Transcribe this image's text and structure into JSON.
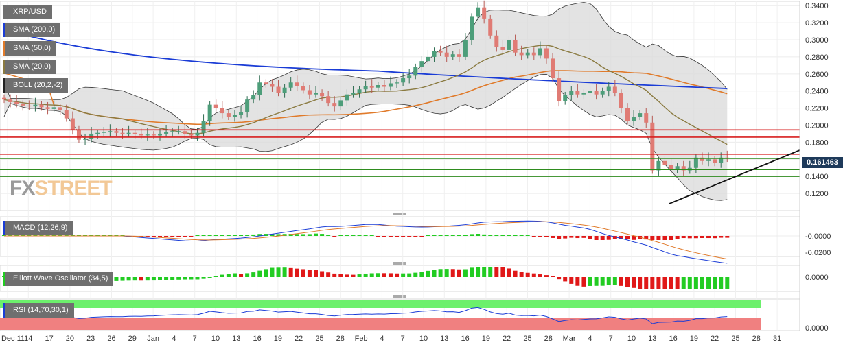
{
  "chart_data": {
    "type": "candlestick",
    "symbol": "XRP/USD",
    "indicators": [
      {
        "label": "SMA (200,0)",
        "color": "#1a3cd6"
      },
      {
        "label": "SMA (50,0)",
        "color": "#e07a2a"
      },
      {
        "label": "SMA (20,0)",
        "color": "#8a7a40"
      },
      {
        "label": "BOLL (20,2,-2)",
        "color": "#222222"
      }
    ],
    "current_price": "0.161463",
    "price_ylim": [
      0.1,
      0.345
    ],
    "price_ticks": [
      "0.3400",
      "0.3200",
      "0.3000",
      "0.2800",
      "0.2600",
      "0.2400",
      "0.2200",
      "0.2000",
      "0.1800",
      "0.1600",
      "0.1400",
      "0.1200"
    ],
    "x_labels": [
      "Dec 11",
      "14",
      "17",
      "20",
      "23",
      "26",
      "29",
      "Jan",
      "4",
      "7",
      "10",
      "13",
      "16",
      "19",
      "22",
      "25",
      "28",
      "Feb",
      "4",
      "7",
      "10",
      "13",
      "16",
      "19",
      "22",
      "25",
      "28",
      "Mar",
      "4",
      "7",
      "10",
      "13",
      "16",
      "19",
      "22",
      "25",
      "28",
      "31"
    ],
    "horizontal_levels": {
      "red": [
        0.1945,
        0.186,
        0.166
      ],
      "green": [
        0.161,
        0.148,
        0.14
      ]
    },
    "close": [
      0.23,
      0.227,
      0.225,
      0.223,
      0.222,
      0.224,
      0.221,
      0.219,
      0.221,
      0.218,
      0.208,
      0.195,
      0.183,
      0.184,
      0.19,
      0.191,
      0.192,
      0.193,
      0.191,
      0.19,
      0.191,
      0.19,
      0.188,
      0.189,
      0.188,
      0.19,
      0.192,
      0.193,
      0.193,
      0.19,
      0.188,
      0.191,
      0.205,
      0.224,
      0.22,
      0.214,
      0.21,
      0.212,
      0.215,
      0.23,
      0.235,
      0.25,
      0.248,
      0.245,
      0.238,
      0.244,
      0.25,
      0.246,
      0.241,
      0.236,
      0.238,
      0.234,
      0.226,
      0.222,
      0.229,
      0.236,
      0.238,
      0.242,
      0.246,
      0.244,
      0.247,
      0.245,
      0.249,
      0.25,
      0.255,
      0.258,
      0.268,
      0.275,
      0.28,
      0.287,
      0.285,
      0.28,
      0.283,
      0.28,
      0.3,
      0.327,
      0.338,
      0.325,
      0.305,
      0.292,
      0.288,
      0.3,
      0.285,
      0.282,
      0.285,
      0.282,
      0.29,
      0.278,
      0.255,
      0.228,
      0.235,
      0.24,
      0.236,
      0.238,
      0.24,
      0.236,
      0.24,
      0.245,
      0.238,
      0.22,
      0.205,
      0.21,
      0.214,
      0.203,
      0.147,
      0.158,
      0.153,
      0.148,
      0.152,
      0.147,
      0.15,
      0.162,
      0.158,
      0.16,
      0.156,
      0.162,
      0.161
    ],
    "macd": {
      "label": "MACD (12,26,9)",
      "ticks": [
        "-0.0000",
        "-0.0200"
      ]
    },
    "ewo": {
      "label": "Elliott Wave Oscillator (34,5)",
      "ticks": [
        "0.0000"
      ]
    },
    "rsi": {
      "label": "RSI (14,70,30,1)",
      "ticks": [
        "0.0000"
      ]
    }
  },
  "watermark": {
    "part1": "FX",
    "part2": "STREET"
  }
}
